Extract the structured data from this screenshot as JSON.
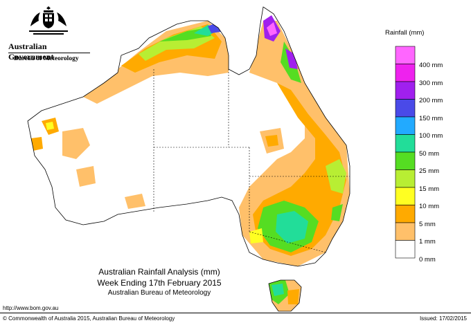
{
  "header": {
    "government": "Australian Government",
    "agency": "Bureau of Meteorology"
  },
  "map": {
    "title_line1": "Australian Rainfall Analysis (mm)",
    "title_line2": "Week Ending 17th February 2015",
    "title_line3": "Australian Bureau of Meteorology"
  },
  "legend": {
    "title": "Rainfall (mm)",
    "labels": [
      "400 mm",
      "300 mm",
      "200 mm",
      "150 mm",
      "100 mm",
      "50 mm",
      "25 mm",
      "15 mm",
      "10 mm",
      "5 mm",
      "1 mm",
      "0 mm"
    ],
    "colors": [
      "#ff66ff",
      "#ee22ee",
      "#a020ee",
      "#4a4ae8",
      "#22aaff",
      "#22dd99",
      "#55dd22",
      "#b8ee33",
      "#ffff22",
      "#ffaa00",
      "#ffc06a",
      "#ffffff"
    ]
  },
  "footer": {
    "url": "http://www.bom.gov.au",
    "copyright": "© Commonwealth of Australia 2015, Australian Bureau of Meteorology",
    "issued": "Issued: 17/02/2015"
  }
}
